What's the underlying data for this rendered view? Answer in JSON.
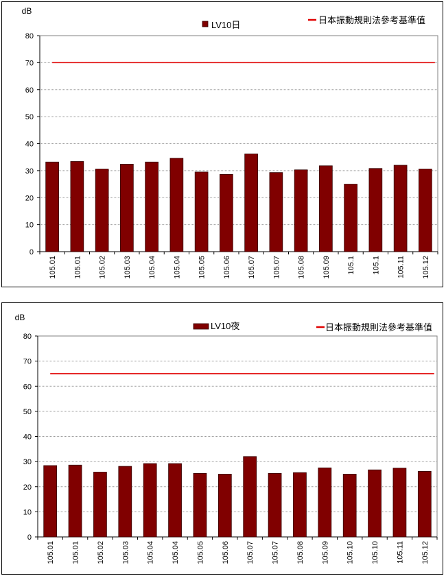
{
  "colors": {
    "bar_fill": "#800000",
    "bar_stroke": "#330000",
    "limit_line": "#e00000",
    "grid": "#9a9a9a",
    "axis": "#000000"
  },
  "chart_data": [
    {
      "type": "bar",
      "title": "",
      "xlabel": "",
      "ylabel": "dB",
      "ylim": [
        0,
        80
      ],
      "yticks": [
        0,
        10,
        20,
        30,
        40,
        50,
        60,
        70,
        80
      ],
      "grid": true,
      "legend_placement": "top",
      "categories": [
        "105.01",
        "105.01",
        "105.02",
        "105.03",
        "105.04",
        "105.04",
        "105.05",
        "105.06",
        "105.07",
        "105.07",
        "105.08",
        "105.09",
        "105.1",
        "105.1",
        "105.11",
        "105.12"
      ],
      "series": [
        {
          "name": "LV10日",
          "values": [
            33.2,
            33.4,
            30.6,
            32.4,
            33.2,
            34.6,
            29.5,
            28.6,
            36.2,
            29.3,
            30.3,
            31.8,
            25.0,
            30.8,
            32.0,
            30.6
          ]
        }
      ],
      "reference_line": {
        "name": "日本振動規則法參考基準值",
        "value": 70
      }
    },
    {
      "type": "bar",
      "title": "",
      "xlabel": "",
      "ylabel": "dB",
      "ylim": [
        0,
        80
      ],
      "yticks": [
        0,
        10,
        20,
        30,
        40,
        50,
        60,
        70,
        80
      ],
      "grid": true,
      "legend_placement": "top",
      "categories": [
        "105.01",
        "105.01",
        "105.02",
        "105.03",
        "105.04",
        "105.04",
        "105.05",
        "105.06",
        "105.07",
        "105.07",
        "105.08",
        "105.09",
        "105.10",
        "105.10",
        "105.11",
        "105.12"
      ],
      "series": [
        {
          "name": "LV10夜",
          "values": [
            28.4,
            28.6,
            25.8,
            28.1,
            29.2,
            29.2,
            25.3,
            25.0,
            32.0,
            25.3,
            25.6,
            27.5,
            25.0,
            26.7,
            27.4,
            26.1
          ]
        }
      ],
      "reference_line": {
        "name": "日本振動規則法參考基準值",
        "value": 65
      }
    }
  ]
}
